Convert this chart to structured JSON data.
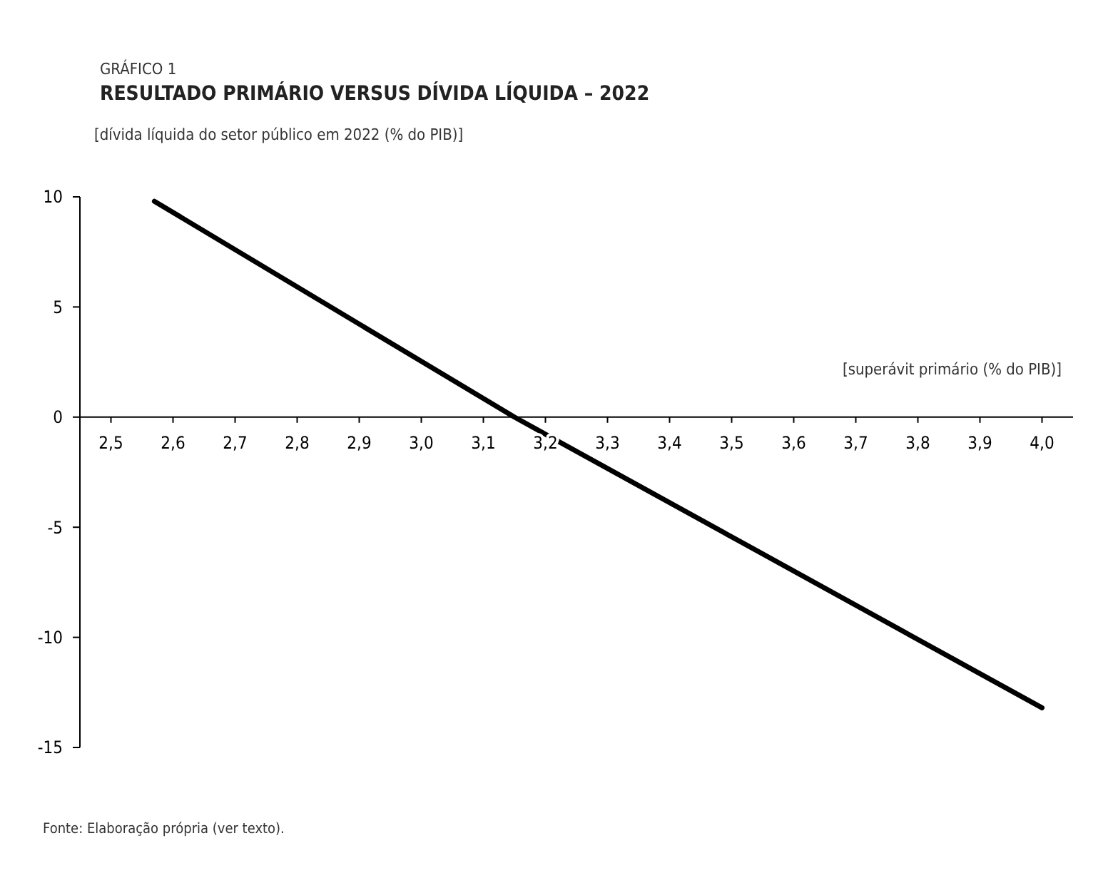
{
  "chart_data": {
    "type": "line",
    "subtitle": "GRÁFICO 1",
    "title": "RESULTADO PRIMÁRIO VERSUS DÍVIDA LÍQUIDA – 2022",
    "ylabel": "[dívida líquida do setor público em 2022 (% do PIB)]",
    "xlabel": "[superávit primário (% do PIB)]",
    "annotations": [
      "Fonte: Elaboração própria (ver texto)."
    ],
    "x": [
      2.57,
      3.15,
      4.0
    ],
    "series": [
      {
        "color": "#000000",
        "values": [
          9.8,
          0,
          -13.2
        ]
      }
    ],
    "xlim": [
      2.45,
      4.05
    ],
    "xticks": [
      {
        "value": 2.5,
        "label": "2,5"
      },
      {
        "value": 2.6,
        "label": "2,6"
      },
      {
        "value": 2.7,
        "label": "2,7"
      },
      {
        "value": 2.8,
        "label": "2,8"
      },
      {
        "value": 2.9,
        "label": "2,9"
      },
      {
        "value": 3.0,
        "label": "3,0"
      },
      {
        "value": 3.1,
        "label": "3,1"
      },
      {
        "value": 3.2,
        "label": "3,2"
      },
      {
        "value": 3.3,
        "label": "3,3"
      },
      {
        "value": 3.4,
        "label": "3,4"
      },
      {
        "value": 3.5,
        "label": "3,5"
      },
      {
        "value": 3.6,
        "label": "3,6"
      },
      {
        "value": 3.7,
        "label": "3,7"
      },
      {
        "value": 3.8,
        "label": "3,8"
      },
      {
        "value": 3.9,
        "label": "3,9"
      },
      {
        "value": 4.0,
        "label": "4,0"
      }
    ],
    "ylim": [
      -15,
      10
    ],
    "yticks": [
      -15,
      -10,
      -5,
      0,
      5,
      10
    ],
    "grid": false,
    "marker": "none",
    "line_style": "solid"
  }
}
